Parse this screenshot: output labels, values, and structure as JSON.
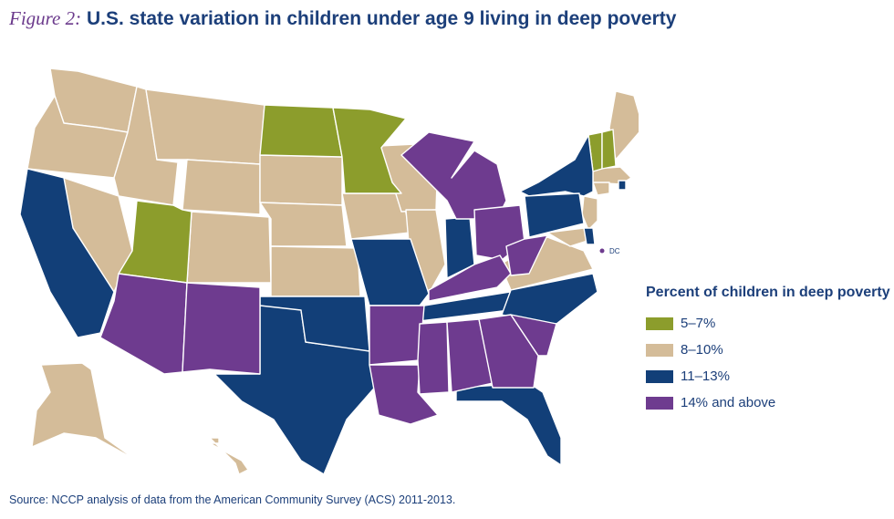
{
  "title": {
    "figure_label": "Figure 2:",
    "text": "U.S. state variation in children under age 9 living in deep poverty"
  },
  "legend": {
    "title": "Percent of children in deep poverty",
    "items": [
      {
        "label": "5–7%",
        "color": "#8c9d2c"
      },
      {
        "label": "8–10%",
        "color": "#d4bc99"
      },
      {
        "label": "11–13%",
        "color": "#123f78"
      },
      {
        "label": "14% and above",
        "color": "#6e3b8f"
      }
    ]
  },
  "map": {
    "dc_label": "DC"
  },
  "source": "Source: NCCP analysis of data from the American Community Survey (ACS) 2011-2013."
}
